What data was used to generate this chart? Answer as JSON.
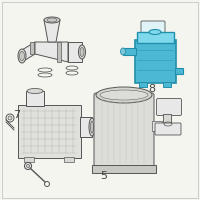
{
  "background_color": "#f5f5f0",
  "border_color": "#bbbbbb",
  "line_color": "#555555",
  "blue_fill": "#4db8d4",
  "blue_edge": "#2090aa",
  "blue_light": "#80d8ec",
  "part_fill": "#e8e8e8",
  "part_fill2": "#d8d8d4",
  "label_color": "#444444",
  "label_5": [
    0.52,
    0.88
  ],
  "label_7": [
    0.085,
    0.575
  ],
  "label_8": [
    0.76,
    0.445
  ],
  "fig_width": 2.0,
  "fig_height": 2.0,
  "dpi": 100
}
